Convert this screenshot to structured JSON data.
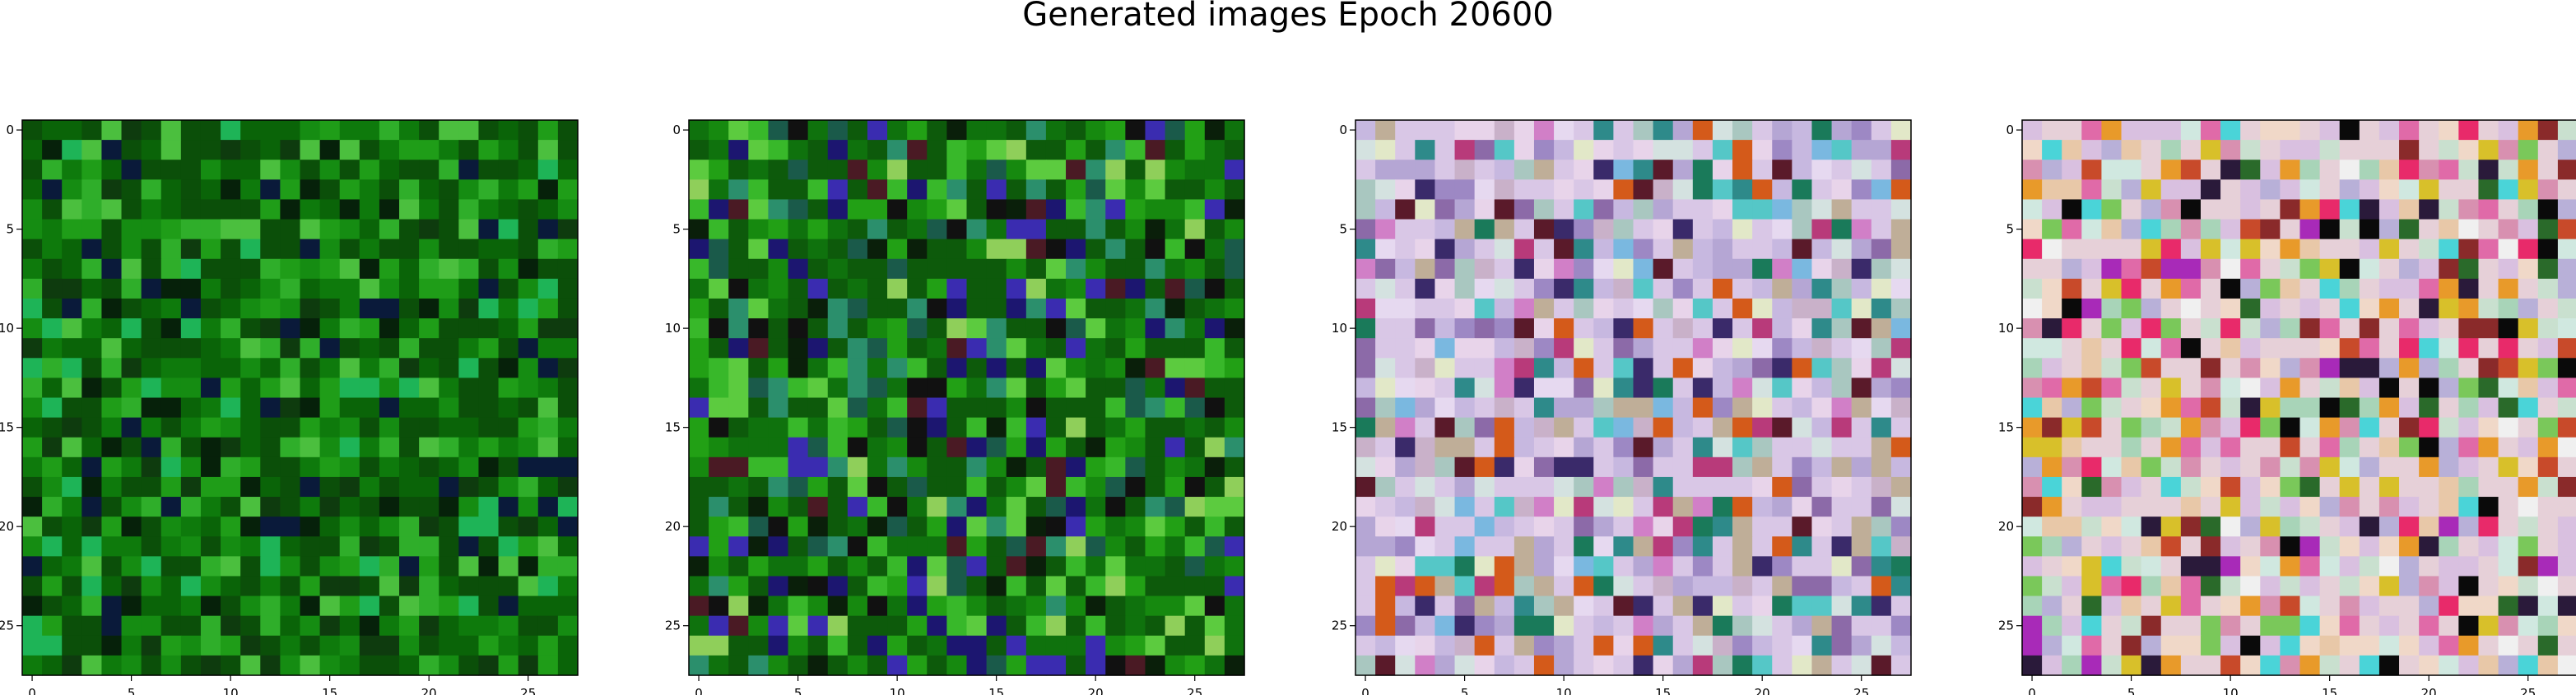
{
  "figure": {
    "title": "Generated images Epoch 20600"
  },
  "chart_data": [
    {
      "type": "heatmap",
      "title": "",
      "xlabel": "",
      "ylabel": "",
      "grid_size": [
        28,
        28
      ],
      "xlim": [
        -0.5,
        27.5
      ],
      "ylim": [
        27.5,
        -0.5
      ],
      "x_ticks": [
        0,
        5,
        10,
        15,
        20,
        25
      ],
      "y_ticks": [
        0,
        5,
        10,
        15,
        20,
        25
      ],
      "grid": false,
      "palette": [
        "#0b4f09",
        "#0a6408",
        "#0e7a0c",
        "#158c12",
        "#1f9d18",
        "#2fae2a",
        "#4bbf3e",
        "#1eb457",
        "#0e3b0e",
        "#06210a",
        "#0a1a3a"
      ],
      "pixel_seed": 11
    },
    {
      "type": "heatmap",
      "title": "",
      "xlabel": "",
      "ylabel": "",
      "grid_size": [
        28,
        28
      ],
      "xlim": [
        -0.5,
        27.5
      ],
      "ylim": [
        27.5,
        -0.5
      ],
      "x_ticks": [
        0,
        5,
        10,
        15,
        20,
        25
      ],
      "y_ticks": [
        0,
        5,
        10,
        15,
        20,
        25
      ],
      "grid": false,
      "palette": [
        "#0d5a0b",
        "#0f720d",
        "#16890f",
        "#22a015",
        "#38b82a",
        "#5ccb3f",
        "#2b8f6c",
        "#1a5a4a",
        "#0a1f0a",
        "#111111",
        "#1c1670",
        "#3a2cb0",
        "#4a1a24",
        "#8fcf5a"
      ],
      "pixel_seed": 23
    },
    {
      "type": "heatmap",
      "title": "",
      "xlabel": "",
      "ylabel": "",
      "grid_size": [
        28,
        28
      ],
      "xlim": [
        -0.5,
        27.5
      ],
      "ylim": [
        27.5,
        -0.5
      ],
      "x_ticks": [
        0,
        5,
        10,
        15,
        20,
        25
      ],
      "y_ticks": [
        0,
        5,
        10,
        15,
        20,
        25
      ],
      "grid": false,
      "palette": [
        "#d9c7e6",
        "#c7b8e0",
        "#e8d4ea",
        "#b5a6d4",
        "#d4e2e0",
        "#a9c7c0",
        "#c9b1c9",
        "#e6d9f0",
        "#9d88c4",
        "#bfae98",
        "#8c6aa8",
        "#d17fc7",
        "#2e8a8a",
        "#55c7c7",
        "#b83a7a",
        "#3a2a6a",
        "#d45a1a",
        "#1a7a5a",
        "#5a1a2a",
        "#7ab8e0",
        "#e2e8c8"
      ],
      "pixel_seed": 37
    },
    {
      "type": "heatmap",
      "title": "",
      "xlabel": "",
      "ylabel": "",
      "grid_size": [
        28,
        28
      ],
      "xlim": [
        -0.5,
        27.5
      ],
      "ylim": [
        27.5,
        -0.5
      ],
      "x_ticks": [
        0,
        5,
        10,
        15,
        20,
        25
      ],
      "y_ticks": [
        0,
        5,
        10,
        15,
        20,
        25
      ],
      "grid": false,
      "palette": [
        "#e6d0d8",
        "#d9c0e0",
        "#c9e0cf",
        "#f0d8c8",
        "#b8b0d8",
        "#d0e8e0",
        "#e8c8a8",
        "#a8d4b8",
        "#d890b0",
        "#e06aa8",
        "#c84a2a",
        "#e89a2a",
        "#d8c02a",
        "#8a2a2a",
        "#2a1a3a",
        "#0a0a0a",
        "#4ad4d8",
        "#7ac85a",
        "#a82ab8",
        "#e82a6a",
        "#2a6a2a",
        "#f0f0f0"
      ],
      "pixel_seed": 53
    }
  ]
}
